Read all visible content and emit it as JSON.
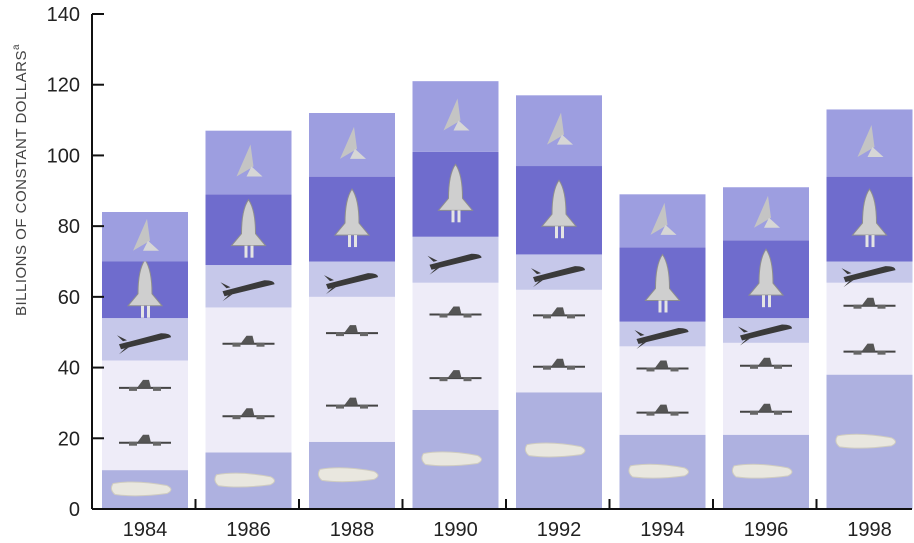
{
  "chart_data": {
    "type": "bar",
    "stacked": true,
    "categories": [
      "1984",
      "1986",
      "1988",
      "1990",
      "1992",
      "1994",
      "1996",
      "1998"
    ],
    "ylabel": "BILLIONS OF CONSTANT DOLLARS",
    "ylabel_superscript": "a",
    "ylim": [
      0,
      140
    ],
    "yticks": [
      "0",
      "20",
      "40",
      "60",
      "80",
      "100",
      "120",
      "140"
    ],
    "grid": false,
    "legend": "none",
    "series": [
      {
        "icon": "aircraft-icon",
        "count": 1,
        "color": "#aeb1e0",
        "values": [
          11,
          16,
          19,
          28,
          33,
          21,
          21,
          38
        ]
      },
      {
        "icon": "fighter-jet-icon",
        "count": 2,
        "color": "#eeecf8",
        "values": [
          31,
          41,
          41,
          36,
          29,
          25,
          26,
          26
        ]
      },
      {
        "icon": "missile-icon",
        "count": 1,
        "color": "#c6c8ea",
        "values": [
          12,
          12,
          10,
          13,
          10,
          7,
          7,
          6
        ]
      },
      {
        "icon": "space-shuttle-icon",
        "count": 1,
        "color": "#6f6ccd",
        "values": [
          16,
          20,
          24,
          24,
          25,
          21,
          22,
          24
        ]
      },
      {
        "icon": "satellite-icon",
        "count": 1,
        "color": "#9d9ee0",
        "values": [
          14,
          18,
          18,
          20,
          20,
          15,
          15,
          19
        ]
      }
    ]
  }
}
